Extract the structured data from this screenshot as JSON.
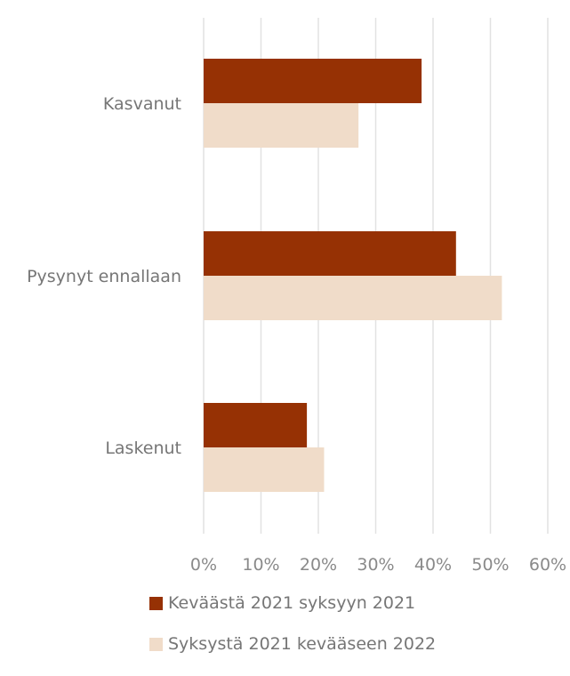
{
  "chart_data": {
    "type": "bar",
    "orientation": "horizontal",
    "categories": [
      "Kasvanut",
      "Pysynyt ennallaan",
      "Laskenut"
    ],
    "series": [
      {
        "name": "Keväästä 2021 syksyyn 2021",
        "values": [
          38,
          44,
          18
        ],
        "color": "#963104"
      },
      {
        "name": "Syksystä 2021 kevääseen 2022",
        "values": [
          27,
          52,
          21
        ],
        "color": "#f0dcc9"
      }
    ],
    "xlim": [
      0,
      60
    ],
    "x_ticks": [
      "0%",
      "10%",
      "20%",
      "30%",
      "40%",
      "50%",
      "60%"
    ],
    "x_tick_values": [
      0,
      10,
      20,
      30,
      40,
      50,
      60
    ],
    "grid": "vertical",
    "legend_position": "bottom",
    "title": "",
    "xlabel": "",
    "ylabel": ""
  }
}
